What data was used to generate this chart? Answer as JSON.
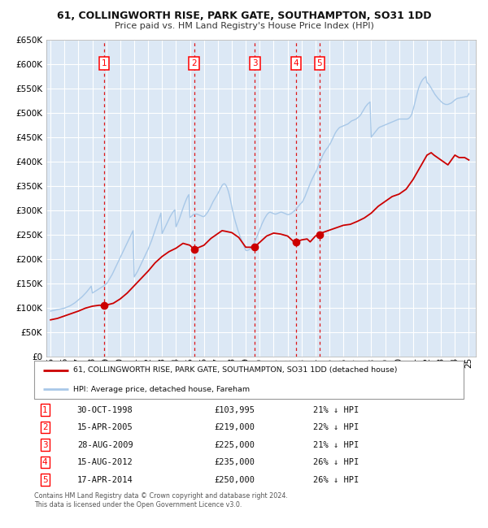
{
  "title": "61, COLLINGWORTH RISE, PARK GATE, SOUTHAMPTON, SO31 1DD",
  "subtitle": "Price paid vs. HM Land Registry's House Price Index (HPI)",
  "legend_line1": "61, COLLINGWORTH RISE, PARK GATE, SOUTHAMPTON, SO31 1DD (detached house)",
  "legend_line2": "HPI: Average price, detached house, Fareham",
  "footnote1": "Contains HM Land Registry data © Crown copyright and database right 2024.",
  "footnote2": "This data is licensed under the Open Government Licence v3.0.",
  "bg_color": "#dce8f5",
  "grid_color": "#ffffff",
  "hpi_color": "#a8c8e8",
  "price_color": "#cc0000",
  "dashed_color": "#dd0000",
  "ylim": [
    0,
    650000
  ],
  "yticks": [
    0,
    50000,
    100000,
    150000,
    200000,
    250000,
    300000,
    350000,
    400000,
    450000,
    500000,
    550000,
    600000,
    650000
  ],
  "xlim_start": 1994.7,
  "xlim_end": 2025.5,
  "transactions": [
    {
      "num": 1,
      "date": "30-OCT-1998",
      "price": 103995,
      "year": 1998.83,
      "pct": "21%",
      "dir": "↓"
    },
    {
      "num": 2,
      "date": "15-APR-2005",
      "price": 219000,
      "year": 2005.29,
      "pct": "22%",
      "dir": "↓"
    },
    {
      "num": 3,
      "date": "28-AUG-2009",
      "price": 225000,
      "year": 2009.65,
      "pct": "21%",
      "dir": "↓"
    },
    {
      "num": 4,
      "date": "15-AUG-2012",
      "price": 235000,
      "year": 2012.62,
      "pct": "26%",
      "dir": "↓"
    },
    {
      "num": 5,
      "date": "17-APR-2014",
      "price": 250000,
      "year": 2014.29,
      "pct": "26%",
      "dir": "↓"
    }
  ],
  "hpi_years": [
    1995.0,
    1995.083,
    1995.167,
    1995.25,
    1995.333,
    1995.417,
    1995.5,
    1995.583,
    1995.667,
    1995.75,
    1995.833,
    1995.917,
    1996.0,
    1996.083,
    1996.167,
    1996.25,
    1996.333,
    1996.417,
    1996.5,
    1996.583,
    1996.667,
    1996.75,
    1996.833,
    1996.917,
    1997.0,
    1997.083,
    1997.167,
    1997.25,
    1997.333,
    1997.417,
    1997.5,
    1997.583,
    1997.667,
    1997.75,
    1997.833,
    1997.917,
    1998.0,
    1998.083,
    1998.167,
    1998.25,
    1998.333,
    1998.417,
    1998.5,
    1998.583,
    1998.667,
    1998.75,
    1998.833,
    1998.917,
    1999.0,
    1999.083,
    1999.167,
    1999.25,
    1999.333,
    1999.417,
    1999.5,
    1999.583,
    1999.667,
    1999.75,
    1999.833,
    1999.917,
    2000.0,
    2000.083,
    2000.167,
    2000.25,
    2000.333,
    2000.417,
    2000.5,
    2000.583,
    2000.667,
    2000.75,
    2000.833,
    2000.917,
    2001.0,
    2001.083,
    2001.167,
    2001.25,
    2001.333,
    2001.417,
    2001.5,
    2001.583,
    2001.667,
    2001.75,
    2001.833,
    2001.917,
    2002.0,
    2002.083,
    2002.167,
    2002.25,
    2002.333,
    2002.417,
    2002.5,
    2002.583,
    2002.667,
    2002.75,
    2002.833,
    2002.917,
    2003.0,
    2003.083,
    2003.167,
    2003.25,
    2003.333,
    2003.417,
    2003.5,
    2003.583,
    2003.667,
    2003.75,
    2003.833,
    2003.917,
    2004.0,
    2004.083,
    2004.167,
    2004.25,
    2004.333,
    2004.417,
    2004.5,
    2004.583,
    2004.667,
    2004.75,
    2004.833,
    2004.917,
    2005.0,
    2005.083,
    2005.167,
    2005.25,
    2005.333,
    2005.417,
    2005.5,
    2005.583,
    2005.667,
    2005.75,
    2005.833,
    2005.917,
    2006.0,
    2006.083,
    2006.167,
    2006.25,
    2006.333,
    2006.417,
    2006.5,
    2006.583,
    2006.667,
    2006.75,
    2006.833,
    2006.917,
    2007.0,
    2007.083,
    2007.167,
    2007.25,
    2007.333,
    2007.417,
    2007.5,
    2007.583,
    2007.667,
    2007.75,
    2007.833,
    2007.917,
    2008.0,
    2008.083,
    2008.167,
    2008.25,
    2008.333,
    2008.417,
    2008.5,
    2008.583,
    2008.667,
    2008.75,
    2008.833,
    2008.917,
    2009.0,
    2009.083,
    2009.167,
    2009.25,
    2009.333,
    2009.417,
    2009.5,
    2009.583,
    2009.667,
    2009.75,
    2009.833,
    2009.917,
    2010.0,
    2010.083,
    2010.167,
    2010.25,
    2010.333,
    2010.417,
    2010.5,
    2010.583,
    2010.667,
    2010.75,
    2010.833,
    2010.917,
    2011.0,
    2011.083,
    2011.167,
    2011.25,
    2011.333,
    2011.417,
    2011.5,
    2011.583,
    2011.667,
    2011.75,
    2011.833,
    2011.917,
    2012.0,
    2012.083,
    2012.167,
    2012.25,
    2012.333,
    2012.417,
    2012.5,
    2012.583,
    2012.667,
    2012.75,
    2012.833,
    2012.917,
    2013.0,
    2013.083,
    2013.167,
    2013.25,
    2013.333,
    2013.417,
    2013.5,
    2013.583,
    2013.667,
    2013.75,
    2013.833,
    2013.917,
    2014.0,
    2014.083,
    2014.167,
    2014.25,
    2014.333,
    2014.417,
    2014.5,
    2014.583,
    2014.667,
    2014.75,
    2014.833,
    2014.917,
    2015.0,
    2015.083,
    2015.167,
    2015.25,
    2015.333,
    2015.417,
    2015.5,
    2015.583,
    2015.667,
    2015.75,
    2015.833,
    2015.917,
    2016.0,
    2016.083,
    2016.167,
    2016.25,
    2016.333,
    2016.417,
    2016.5,
    2016.583,
    2016.667,
    2016.75,
    2016.833,
    2016.917,
    2017.0,
    2017.083,
    2017.167,
    2017.25,
    2017.333,
    2017.417,
    2017.5,
    2017.583,
    2017.667,
    2017.75,
    2017.833,
    2017.917,
    2018.0,
    2018.083,
    2018.167,
    2018.25,
    2018.333,
    2018.417,
    2018.5,
    2018.583,
    2018.667,
    2018.75,
    2018.833,
    2018.917,
    2019.0,
    2019.083,
    2019.167,
    2019.25,
    2019.333,
    2019.417,
    2019.5,
    2019.583,
    2019.667,
    2019.75,
    2019.833,
    2019.917,
    2020.0,
    2020.083,
    2020.167,
    2020.25,
    2020.333,
    2020.417,
    2020.5,
    2020.583,
    2020.667,
    2020.75,
    2020.833,
    2020.917,
    2021.0,
    2021.083,
    2021.167,
    2021.25,
    2021.333,
    2021.417,
    2021.5,
    2021.583,
    2021.667,
    2021.75,
    2021.833,
    2021.917,
    2022.0,
    2022.083,
    2022.167,
    2022.25,
    2022.333,
    2022.417,
    2022.5,
    2022.583,
    2022.667,
    2022.75,
    2022.833,
    2022.917,
    2023.0,
    2023.083,
    2023.167,
    2023.25,
    2023.333,
    2023.417,
    2023.5,
    2023.583,
    2023.667,
    2023.75,
    2023.833,
    2023.917,
    2024.0,
    2024.083,
    2024.167,
    2024.25,
    2024.333,
    2024.417,
    2024.5,
    2024.583,
    2024.667,
    2024.75,
    2024.833,
    2024.917,
    2025.0
  ],
  "hpi_values": [
    93000,
    93500,
    94000,
    94500,
    95000,
    95500,
    96000,
    96500,
    97000,
    97500,
    98000,
    98500,
    99000,
    100000,
    101000,
    102000,
    103000,
    104000,
    105500,
    107000,
    108500,
    110000,
    112000,
    114000,
    116000,
    118000,
    120000,
    122000,
    124500,
    127000,
    129500,
    132000,
    135000,
    138000,
    141000,
    144000,
    130000,
    131500,
    133000,
    134500,
    136000,
    137500,
    139000,
    140500,
    142000,
    143500,
    145000,
    147000,
    149000,
    152000,
    156000,
    160000,
    164000,
    168000,
    173000,
    178000,
    183000,
    188000,
    193000,
    198000,
    203000,
    208000,
    213000,
    218000,
    223000,
    228000,
    233000,
    238000,
    243000,
    248000,
    253000,
    258000,
    163000,
    167000,
    171000,
    175000,
    180000,
    185000,
    190000,
    195000,
    200000,
    205000,
    210000,
    215000,
    220000,
    226000,
    232000,
    238000,
    245000,
    252000,
    259000,
    266000,
    273000,
    280000,
    287000,
    294000,
    252000,
    257000,
    262000,
    267000,
    272000,
    277000,
    282000,
    287000,
    291000,
    295000,
    298000,
    301000,
    266000,
    271000,
    277000,
    283000,
    290000,
    297000,
    304000,
    311000,
    317000,
    323000,
    328000,
    332000,
    285000,
    287000,
    289000,
    291000,
    292000,
    292000,
    292000,
    291000,
    290000,
    289000,
    288000,
    287000,
    287000,
    289000,
    292000,
    295000,
    299000,
    303000,
    308000,
    313000,
    318000,
    322000,
    326000,
    330000,
    334000,
    339000,
    344000,
    348000,
    352000,
    354000,
    354000,
    351000,
    346000,
    339000,
    330000,
    319000,
    307000,
    296000,
    286000,
    277000,
    269000,
    261000,
    254000,
    247000,
    241000,
    235000,
    229000,
    223000,
    218000,
    217000,
    218000,
    219000,
    221000,
    224000,
    228000,
    232000,
    237000,
    242000,
    248000,
    254000,
    260000,
    266000,
    272000,
    277000,
    282000,
    286000,
    290000,
    293000,
    295000,
    296000,
    295000,
    294000,
    293000,
    292000,
    292000,
    293000,
    294000,
    295000,
    296000,
    296000,
    295000,
    294000,
    293000,
    292000,
    291000,
    291000,
    292000,
    293000,
    295000,
    297000,
    299000,
    301000,
    304000,
    307000,
    310000,
    313000,
    315000,
    318000,
    323000,
    328000,
    334000,
    340000,
    346000,
    352000,
    358000,
    363000,
    368000,
    373000,
    377000,
    382000,
    388000,
    394000,
    400000,
    405000,
    411000,
    416000,
    420000,
    424000,
    427000,
    430000,
    434000,
    438000,
    443000,
    448000,
    453000,
    458000,
    462000,
    465000,
    468000,
    470000,
    471000,
    472000,
    473000,
    474000,
    475000,
    476000,
    477000,
    479000,
    481000,
    483000,
    484000,
    485000,
    486000,
    487000,
    489000,
    491000,
    493000,
    496000,
    500000,
    504000,
    508000,
    512000,
    515000,
    518000,
    520000,
    522000,
    450000,
    453000,
    456000,
    459000,
    462000,
    465000,
    468000,
    470000,
    471000,
    472000,
    473000,
    474000,
    475000,
    476000,
    477000,
    478000,
    479000,
    480000,
    481000,
    482000,
    483000,
    484000,
    485000,
    486000,
    487000,
    487000,
    487000,
    487000,
    487000,
    487000,
    487000,
    487000,
    488000,
    490000,
    493000,
    498000,
    506000,
    515000,
    525000,
    535000,
    544000,
    552000,
    558000,
    563000,
    567000,
    570000,
    572000,
    574000,
    562000,
    560000,
    557000,
    553000,
    549000,
    545000,
    541000,
    537000,
    534000,
    531000,
    528000,
    526000,
    523000,
    521000,
    519000,
    518000,
    517000,
    517000,
    517000,
    518000,
    519000,
    520000,
    522000,
    524000,
    526000,
    528000,
    529000,
    530000,
    530000,
    531000,
    531000,
    532000,
    532000,
    533000,
    533000,
    534000,
    539000
  ],
  "price_years": [
    1995.0,
    1995.5,
    1996.0,
    1996.5,
    1997.0,
    1997.5,
    1998.0,
    1998.5,
    1998.83,
    1999.5,
    2000.0,
    2000.5,
    2001.0,
    2001.5,
    2002.0,
    2002.5,
    2003.0,
    2003.5,
    2004.0,
    2004.5,
    2005.0,
    2005.29,
    2005.5,
    2006.0,
    2006.5,
    2007.0,
    2007.3,
    2007.5,
    2008.0,
    2008.5,
    2009.0,
    2009.5,
    2009.65,
    2010.0,
    2010.5,
    2011.0,
    2011.5,
    2012.0,
    2012.5,
    2012.62,
    2013.0,
    2013.4,
    2013.62,
    2014.0,
    2014.29,
    2014.5,
    2015.0,
    2015.5,
    2016.0,
    2016.5,
    2017.0,
    2017.5,
    2018.0,
    2018.5,
    2019.0,
    2019.5,
    2020.0,
    2020.5,
    2021.0,
    2021.5,
    2022.0,
    2022.3,
    2022.5,
    2023.0,
    2023.5,
    2024.0,
    2024.3,
    2024.7,
    2025.0
  ],
  "price_values": [
    75000,
    78000,
    83000,
    88000,
    93000,
    99000,
    103000,
    105000,
    103995,
    109000,
    118000,
    130000,
    145000,
    160000,
    175000,
    192000,
    205000,
    215000,
    222000,
    232000,
    228000,
    219000,
    222000,
    228000,
    242000,
    252000,
    258000,
    257000,
    254000,
    244000,
    224000,
    224000,
    225000,
    234000,
    247000,
    253000,
    251000,
    247000,
    234000,
    235000,
    239000,
    241000,
    235000,
    247000,
    250000,
    254000,
    259000,
    264000,
    269000,
    271000,
    277000,
    284000,
    294000,
    308000,
    318000,
    328000,
    333000,
    343000,
    363000,
    388000,
    413000,
    418000,
    413000,
    403000,
    393000,
    413000,
    408000,
    408000,
    403000
  ]
}
